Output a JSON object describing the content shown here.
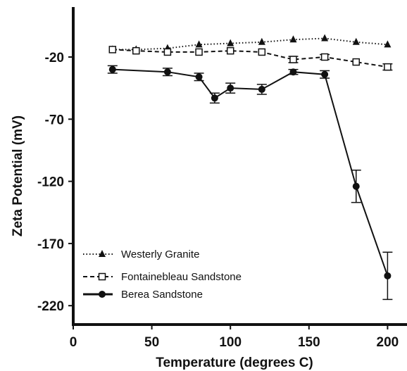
{
  "chart_data": {
    "type": "line",
    "xlabel": "Temperature (degrees C)",
    "ylabel": "Zeta Potential (mV)",
    "xlim": [
      0,
      210
    ],
    "ylim": [
      -240,
      15
    ],
    "xticks": [
      0,
      50,
      100,
      150,
      200
    ],
    "yticks": [
      -20,
      -70,
      -120,
      -170,
      -220
    ],
    "legend_position": "bottom-left",
    "series": [
      {
        "name": "Westerly Granite",
        "marker": "triangle",
        "line_style": "dotted",
        "x": [
          25,
          40,
          60,
          80,
          100,
          120,
          140,
          160,
          180,
          200
        ],
        "y": [
          -14,
          -14,
          -13,
          -10,
          -9,
          -8,
          -6,
          -5,
          -8,
          -10
        ],
        "err": [
          0,
          0,
          0,
          0,
          0,
          0,
          0,
          0,
          0,
          0
        ]
      },
      {
        "name": "Fontainebleau Sandstone",
        "marker": "square-open",
        "line_style": "dashed",
        "x": [
          25,
          40,
          60,
          80,
          100,
          120,
          140,
          160,
          180,
          200
        ],
        "y": [
          -14,
          -15,
          -16,
          -16,
          -15,
          -16,
          -22,
          -20,
          -24,
          -28
        ],
        "err": [
          0,
          0,
          0,
          0,
          0,
          0,
          2.5,
          2,
          0,
          2.5
        ]
      },
      {
        "name": "Berea Sandstone",
        "marker": "circle",
        "line_style": "solid",
        "x": [
          25,
          60,
          80,
          90,
          100,
          120,
          140,
          160,
          180,
          200
        ],
        "y": [
          -30,
          -32,
          -36,
          -53,
          -45,
          -46,
          -32,
          -34,
          -124,
          -196
        ],
        "err": [
          3,
          3,
          3,
          4,
          4,
          4,
          2,
          3,
          13,
          19
        ]
      }
    ]
  }
}
